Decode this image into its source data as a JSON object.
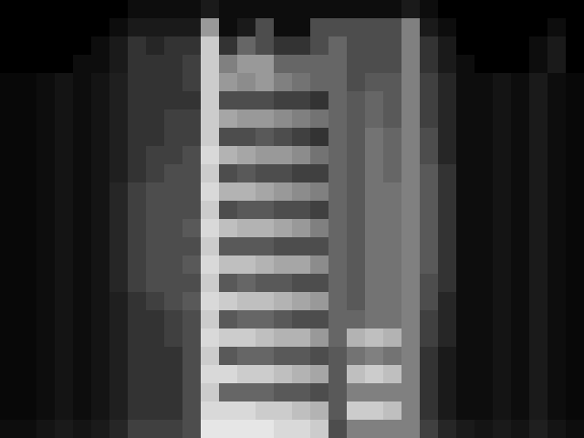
{
  "chart_data": {
    "type": "heatmap",
    "tick_labels": false,
    "grid": false,
    "cells": [
      [
        0,
        0,
        0,
        0,
        0,
        0,
        0,
        0.05,
        0.05,
        0.05,
        0.05,
        0.1,
        0.05,
        0.05,
        0.05,
        0.05,
        0.05,
        0.05,
        0.05,
        0.05,
        0.05,
        0.05,
        0.1,
        0.05,
        0,
        0,
        0,
        0,
        0,
        0,
        0,
        0
      ],
      [
        0,
        0,
        0,
        0,
        0,
        0,
        0.05,
        0.1,
        0.1,
        0.1,
        0.1,
        0.6,
        0.05,
        0.1,
        0.3,
        0.05,
        0.05,
        0.3,
        0.3,
        0.3,
        0.3,
        0.3,
        0.5,
        0.1,
        0.05,
        0,
        0,
        0,
        0,
        0,
        0.05,
        0
      ],
      [
        0,
        0,
        0,
        0,
        0,
        0.05,
        0.1,
        0.2,
        0.15,
        0.2,
        0.2,
        0.8,
        0.2,
        0.4,
        0.3,
        0.2,
        0.2,
        0.3,
        0.4,
        0.3,
        0.3,
        0.3,
        0.5,
        0.2,
        0.1,
        0,
        0,
        0,
        0,
        0.05,
        0.1,
        0
      ],
      [
        0,
        0,
        0,
        0,
        0.05,
        0.05,
        0.1,
        0.2,
        0.2,
        0.2,
        0.25,
        0.8,
        0.5,
        0.6,
        0.6,
        0.4,
        0.4,
        0.4,
        0.4,
        0.3,
        0.3,
        0.3,
        0.5,
        0.2,
        0.1,
        0.05,
        0,
        0,
        0,
        0.05,
        0.1,
        0
      ],
      [
        0.03,
        0.03,
        0.05,
        0.08,
        0.05,
        0.08,
        0.12,
        0.2,
        0.2,
        0.2,
        0.25,
        0.8,
        0.6,
        0.55,
        0.6,
        0.5,
        0.45,
        0.4,
        0.4,
        0.3,
        0.35,
        0.35,
        0.5,
        0.25,
        0.15,
        0.05,
        0.05,
        0.08,
        0.05,
        0.1,
        0.05,
        0.03
      ],
      [
        0.03,
        0.03,
        0.05,
        0.08,
        0.05,
        0.08,
        0.12,
        0.2,
        0.2,
        0.2,
        0.2,
        0.8,
        0.3,
        0.3,
        0.3,
        0.25,
        0.25,
        0.2,
        0.4,
        0.35,
        0.4,
        0.35,
        0.5,
        0.25,
        0.15,
        0.05,
        0.05,
        0.08,
        0.05,
        0.1,
        0.05,
        0.03
      ],
      [
        0.03,
        0.03,
        0.05,
        0.08,
        0.05,
        0.08,
        0.12,
        0.2,
        0.2,
        0.25,
        0.25,
        0.8,
        0.65,
        0.6,
        0.6,
        0.55,
        0.5,
        0.45,
        0.4,
        0.35,
        0.4,
        0.35,
        0.5,
        0.25,
        0.15,
        0.05,
        0.05,
        0.08,
        0.05,
        0.1,
        0.05,
        0.03
      ],
      [
        0.03,
        0.03,
        0.05,
        0.08,
        0.05,
        0.08,
        0.12,
        0.2,
        0.2,
        0.25,
        0.25,
        0.8,
        0.3,
        0.3,
        0.35,
        0.3,
        0.25,
        0.2,
        0.4,
        0.35,
        0.45,
        0.4,
        0.5,
        0.3,
        0.15,
        0.05,
        0.05,
        0.08,
        0.05,
        0.1,
        0.05,
        0.03
      ],
      [
        0.03,
        0.03,
        0.05,
        0.08,
        0.05,
        0.08,
        0.12,
        0.2,
        0.25,
        0.25,
        0.3,
        0.85,
        0.7,
        0.65,
        0.6,
        0.6,
        0.55,
        0.45,
        0.4,
        0.35,
        0.45,
        0.4,
        0.5,
        0.3,
        0.15,
        0.05,
        0.05,
        0.08,
        0.05,
        0.1,
        0.05,
        0.03
      ],
      [
        0.03,
        0.03,
        0.05,
        0.08,
        0.05,
        0.08,
        0.12,
        0.2,
        0.25,
        0.3,
        0.3,
        0.8,
        0.3,
        0.35,
        0.3,
        0.3,
        0.25,
        0.25,
        0.4,
        0.35,
        0.45,
        0.4,
        0.5,
        0.35,
        0.2,
        0.05,
        0.05,
        0.08,
        0.05,
        0.1,
        0.05,
        0.03
      ],
      [
        0.03,
        0.03,
        0.05,
        0.08,
        0.05,
        0.08,
        0.15,
        0.25,
        0.3,
        0.3,
        0.3,
        0.85,
        0.7,
        0.7,
        0.65,
        0.6,
        0.55,
        0.5,
        0.4,
        0.35,
        0.45,
        0.45,
        0.5,
        0.35,
        0.2,
        0.05,
        0.05,
        0.08,
        0.05,
        0.1,
        0.05,
        0.03
      ],
      [
        0.03,
        0.03,
        0.05,
        0.08,
        0.05,
        0.08,
        0.15,
        0.25,
        0.3,
        0.3,
        0.3,
        0.8,
        0.3,
        0.35,
        0.35,
        0.3,
        0.3,
        0.25,
        0.4,
        0.35,
        0.45,
        0.45,
        0.5,
        0.35,
        0.2,
        0.05,
        0.05,
        0.08,
        0.05,
        0.1,
        0.05,
        0.03
      ],
      [
        0.03,
        0.03,
        0.05,
        0.08,
        0.05,
        0.08,
        0.15,
        0.25,
        0.3,
        0.3,
        0.35,
        0.85,
        0.75,
        0.7,
        0.7,
        0.65,
        0.6,
        0.5,
        0.4,
        0.35,
        0.45,
        0.45,
        0.5,
        0.35,
        0.2,
        0.05,
        0.05,
        0.08,
        0.05,
        0.1,
        0.05,
        0.03
      ],
      [
        0.03,
        0.03,
        0.05,
        0.08,
        0.05,
        0.08,
        0.15,
        0.25,
        0.3,
        0.3,
        0.3,
        0.8,
        0.35,
        0.35,
        0.35,
        0.3,
        0.3,
        0.3,
        0.4,
        0.35,
        0.45,
        0.45,
        0.5,
        0.35,
        0.2,
        0.05,
        0.05,
        0.08,
        0.05,
        0.1,
        0.05,
        0.03
      ],
      [
        0.03,
        0.03,
        0.05,
        0.08,
        0.05,
        0.08,
        0.15,
        0.25,
        0.3,
        0.3,
        0.35,
        0.85,
        0.75,
        0.75,
        0.7,
        0.65,
        0.65,
        0.55,
        0.4,
        0.35,
        0.45,
        0.45,
        0.5,
        0.35,
        0.2,
        0.05,
        0.05,
        0.08,
        0.05,
        0.1,
        0.05,
        0.03
      ],
      [
        0.03,
        0.03,
        0.05,
        0.08,
        0.05,
        0.08,
        0.15,
        0.25,
        0.3,
        0.3,
        0.3,
        0.8,
        0.35,
        0.4,
        0.35,
        0.35,
        0.3,
        0.3,
        0.4,
        0.35,
        0.45,
        0.45,
        0.5,
        0.3,
        0.2,
        0.05,
        0.05,
        0.08,
        0.05,
        0.1,
        0.05,
        0.03
      ],
      [
        0.03,
        0.03,
        0.05,
        0.08,
        0.05,
        0.08,
        0.12,
        0.2,
        0.25,
        0.3,
        0.35,
        0.85,
        0.8,
        0.75,
        0.75,
        0.7,
        0.65,
        0.6,
        0.4,
        0.35,
        0.45,
        0.45,
        0.5,
        0.3,
        0.15,
        0.05,
        0.05,
        0.08,
        0.05,
        0.1,
        0.05,
        0.03
      ],
      [
        0.03,
        0.03,
        0.05,
        0.08,
        0.05,
        0.08,
        0.12,
        0.2,
        0.2,
        0.25,
        0.3,
        0.8,
        0.35,
        0.4,
        0.4,
        0.35,
        0.3,
        0.3,
        0.4,
        0.4,
        0.45,
        0.45,
        0.5,
        0.25,
        0.15,
        0.05,
        0.05,
        0.08,
        0.05,
        0.1,
        0.05,
        0.03
      ],
      [
        0.03,
        0.03,
        0.05,
        0.08,
        0.05,
        0.08,
        0.12,
        0.2,
        0.2,
        0.25,
        0.3,
        0.85,
        0.8,
        0.8,
        0.75,
        0.7,
        0.7,
        0.6,
        0.4,
        0.7,
        0.75,
        0.7,
        0.5,
        0.25,
        0.15,
        0.05,
        0.05,
        0.08,
        0.05,
        0.1,
        0.05,
        0.03
      ],
      [
        0.03,
        0.03,
        0.05,
        0.08,
        0.05,
        0.08,
        0.12,
        0.2,
        0.2,
        0.2,
        0.3,
        0.8,
        0.35,
        0.4,
        0.4,
        0.35,
        0.35,
        0.3,
        0.35,
        0.45,
        0.5,
        0.45,
        0.5,
        0.2,
        0.1,
        0.05,
        0.05,
        0.08,
        0.05,
        0.1,
        0.05,
        0.03
      ],
      [
        0.03,
        0.03,
        0.05,
        0.08,
        0.05,
        0.08,
        0.12,
        0.2,
        0.2,
        0.2,
        0.3,
        0.85,
        0.85,
        0.8,
        0.8,
        0.75,
        0.7,
        0.65,
        0.35,
        0.75,
        0.8,
        0.75,
        0.5,
        0.2,
        0.1,
        0.05,
        0.05,
        0.08,
        0.05,
        0.1,
        0.05,
        0.03
      ],
      [
        0.03,
        0.03,
        0.05,
        0.08,
        0.05,
        0.08,
        0.12,
        0.2,
        0.2,
        0.2,
        0.3,
        0.8,
        0.4,
        0.4,
        0.4,
        0.35,
        0.35,
        0.3,
        0.35,
        0.5,
        0.5,
        0.5,
        0.5,
        0.2,
        0.1,
        0.05,
        0.05,
        0.08,
        0.05,
        0.1,
        0.05,
        0.03
      ],
      [
        0.03,
        0.03,
        0.05,
        0.08,
        0.05,
        0.08,
        0.12,
        0.2,
        0.2,
        0.2,
        0.3,
        0.85,
        0.85,
        0.85,
        0.8,
        0.8,
        0.75,
        0.7,
        0.35,
        0.8,
        0.8,
        0.75,
        0.5,
        0.2,
        0.1,
        0.05,
        0.05,
        0.08,
        0.05,
        0.1,
        0.05,
        0.03
      ],
      [
        0.05,
        0.05,
        0.08,
        0.1,
        0.08,
        0.1,
        0.15,
        0.25,
        0.25,
        0.25,
        0.3,
        0.9,
        0.9,
        0.9,
        0.9,
        0.85,
        0.85,
        0.8,
        0.3,
        0.5,
        0.5,
        0.5,
        0.5,
        0.25,
        0.15,
        0.1,
        0.08,
        0.1,
        0.08,
        0.12,
        0.08,
        0.05
      ]
    ]
  }
}
